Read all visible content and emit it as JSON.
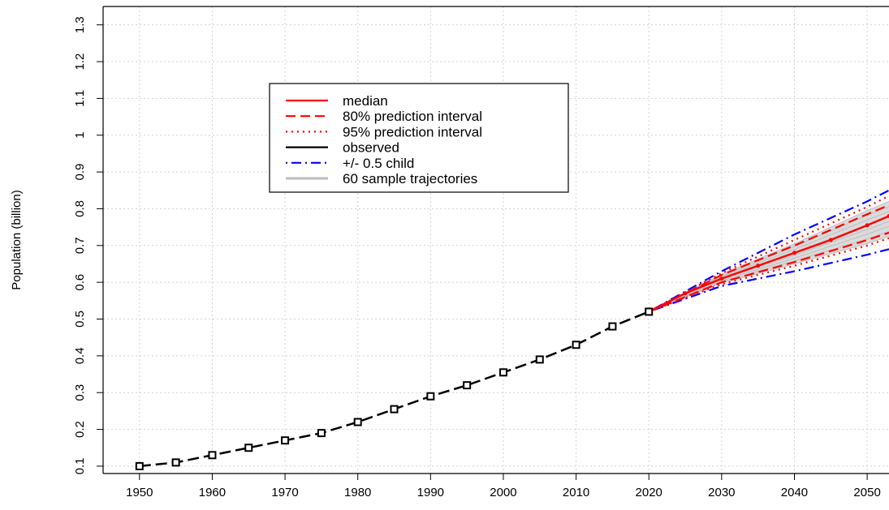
{
  "chart_data": {
    "type": "line",
    "title": "",
    "xlabel": "",
    "ylabel": "Population (billion)",
    "xlim": [
      1945,
      2053
    ],
    "ylim": [
      0.08,
      1.35
    ],
    "x_ticks": [
      1950,
      1960,
      1970,
      1980,
      1990,
      2000,
      2010,
      2020,
      2030,
      2040,
      2050
    ],
    "y_ticks": [
      0.1,
      0.2,
      0.3,
      0.4,
      0.5,
      0.6,
      0.7,
      0.8,
      0.9,
      1.0,
      1.1,
      1.2,
      1.3
    ],
    "y_tick_labels": [
      "0.1",
      "0.2",
      "0.3",
      "0.4",
      "0.5",
      "0.6",
      "0.7",
      "0.8",
      "0.9",
      "1",
      "1.1",
      "1.2",
      "1.3"
    ],
    "grid": true,
    "legend_position": "top-left",
    "legend": [
      {
        "label": "median",
        "color": "#ff0000",
        "dash": "solid"
      },
      {
        "label": "80% prediction interval",
        "color": "#ff0000",
        "dash": "dashed"
      },
      {
        "label": "95% prediction interval",
        "color": "#ff0000",
        "dash": "dotted"
      },
      {
        "label": "observed",
        "color": "#000000",
        "dash": "solid"
      },
      {
        "label": "+/- 0.5 child",
        "color": "#0000ff",
        "dash": "dotdash"
      },
      {
        "label": "60 sample trajectories",
        "color": "#bebebe",
        "dash": "solid"
      }
    ],
    "series": [
      {
        "name": "observed",
        "color": "#000000",
        "x": [
          1950,
          1955,
          1960,
          1965,
          1970,
          1975,
          1980,
          1985,
          1990,
          1995,
          2000,
          2005,
          2010,
          2015,
          2020
        ],
        "y": [
          0.1,
          0.11,
          0.13,
          0.15,
          0.17,
          0.19,
          0.22,
          0.255,
          0.29,
          0.32,
          0.355,
          0.39,
          0.43,
          0.48,
          0.52
        ]
      },
      {
        "name": "median",
        "color": "#ff0000",
        "x": [
          2020,
          2025,
          2030,
          2035,
          2040,
          2045,
          2050,
          2053
        ],
        "y": [
          0.52,
          0.57,
          0.61,
          0.645,
          0.68,
          0.715,
          0.755,
          0.78
        ]
      },
      {
        "name": "80% prediction interval",
        "color": "#ff0000",
        "x": [
          2020,
          2030,
          2040,
          2050,
          2053
        ],
        "lower": [
          0.52,
          0.6,
          0.655,
          0.715,
          0.735
        ],
        "upper": [
          0.52,
          0.62,
          0.7,
          0.785,
          0.81
        ]
      },
      {
        "name": "95% prediction interval",
        "color": "#ff0000",
        "x": [
          2020,
          2030,
          2040,
          2050,
          2053
        ],
        "lower": [
          0.52,
          0.595,
          0.645,
          0.7,
          0.72
        ],
        "upper": [
          0.52,
          0.625,
          0.715,
          0.805,
          0.835
        ]
      },
      {
        "name": "+/- 0.5 child",
        "color": "#0000ff",
        "x": [
          2020,
          2030,
          2040,
          2050,
          2053
        ],
        "lower": [
          0.52,
          0.59,
          0.63,
          0.675,
          0.69
        ],
        "upper": [
          0.52,
          0.63,
          0.73,
          0.82,
          0.85
        ]
      },
      {
        "name": "60 sample trajectories",
        "color": "#bebebe",
        "x": [
          2020,
          2030,
          2040,
          2050,
          2053
        ],
        "lower": [
          0.52,
          0.598,
          0.65,
          0.705,
          0.725
        ],
        "upper": [
          0.52,
          0.622,
          0.705,
          0.795,
          0.82
        ]
      }
    ]
  }
}
